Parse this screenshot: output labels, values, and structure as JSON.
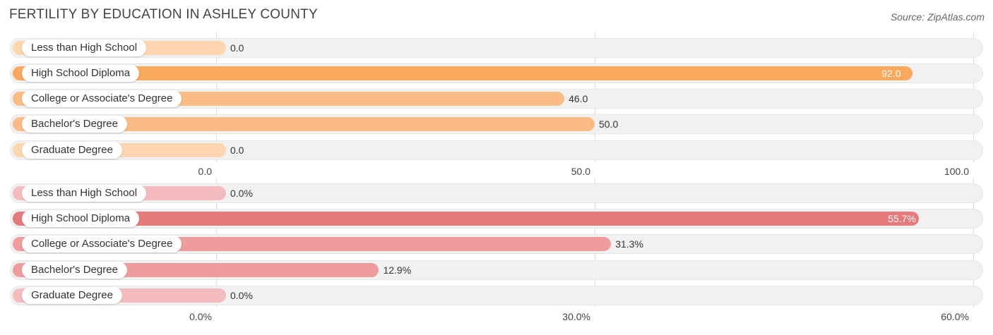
{
  "header": {
    "title": "FERTILITY BY EDUCATION IN ASHLEY COUNTY",
    "source": "Source: ZipAtlas.com"
  },
  "chart_data": [
    {
      "type": "bar",
      "orientation": "horizontal",
      "categories": [
        "Less than High School",
        "High School Diploma",
        "College or Associate's Degree",
        "Bachelor's Degree",
        "Graduate Degree"
      ],
      "values": [
        0.0,
        92.0,
        46.0,
        50.0,
        0.0
      ],
      "value_labels": [
        "0.0",
        "92.0",
        "46.0",
        "50.0",
        "0.0"
      ],
      "xlim": [
        0,
        100
      ],
      "ticks": [
        0,
        50,
        100
      ],
      "tick_labels": [
        "0.0",
        "50.0",
        "100.0"
      ],
      "grid": true,
      "colors": {
        "bar": "#fbbb84",
        "highlight": "#f9a85c",
        "zero": "#fdd5b1"
      }
    },
    {
      "type": "bar",
      "orientation": "horizontal",
      "categories": [
        "Less than High School",
        "High School Diploma",
        "College or Associate's Degree",
        "Bachelor's Degree",
        "Graduate Degree"
      ],
      "values": [
        0.0,
        55.7,
        31.3,
        12.9,
        0.0
      ],
      "value_labels": [
        "0.0%",
        "55.7%",
        "31.3%",
        "12.9%",
        "0.0%"
      ],
      "xlim": [
        0,
        60
      ],
      "ticks": [
        0,
        30,
        60
      ],
      "tick_labels": [
        "0.0%",
        "30.0%",
        "60.0%"
      ],
      "grid": true,
      "colors": {
        "bar": "#ef9c9c",
        "highlight": "#e57a7a",
        "zero": "#f4bcbc"
      }
    }
  ]
}
